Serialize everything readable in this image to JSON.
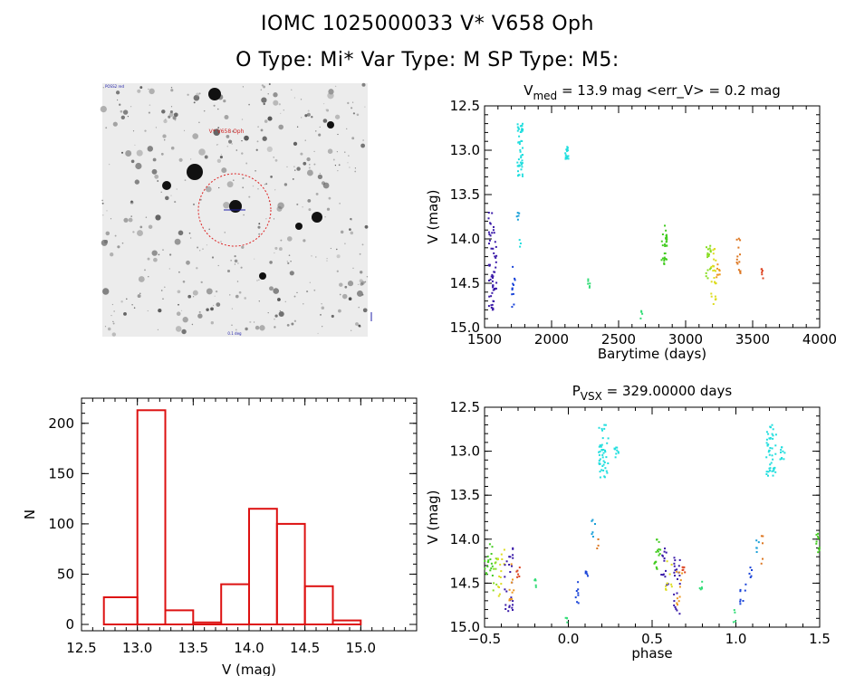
{
  "header": {
    "title_line1": "IOMC 1025000033    V* V658 Oph",
    "title_line2": "O Type: Mi*  Var Type: M  SP Type: M5:"
  },
  "image_panel": {
    "description_label_top_left": "POSS2 red",
    "label_source": "V* V658 Oph",
    "label_bottom": "0.1 deg",
    "colors": {
      "circle": "#dd2222",
      "label": "#cc2222",
      "marker": "#2222aa"
    }
  },
  "chart_data": [
    {
      "id": "lightcurve",
      "type": "scatter",
      "title_main": "V",
      "title_sub": "med",
      "title_rest": " = 13.9 mag <err_V> = 0.2 mag",
      "xlabel": "Barytime (days)",
      "ylabel": "V (mag)",
      "xlim": [
        1500,
        4000
      ],
      "ylim": [
        15.0,
        12.5
      ],
      "y_inverted": true,
      "xticks": [
        "1500",
        "2000",
        "2500",
        "3000",
        "3500",
        "4000"
      ],
      "yticks": [
        "12.5",
        "13.0",
        "13.5",
        "14.0",
        "14.5",
        "15.0"
      ],
      "clusters": [
        {
          "x0": 1530,
          "x1": 1575,
          "y0": 13.7,
          "y1": 14.8,
          "n": 40,
          "color": "#3a1aa8"
        },
        {
          "x0": 1560,
          "x1": 1590,
          "y0": 14.0,
          "y1": 14.6,
          "n": 18,
          "color": "#3a1aa8"
        },
        {
          "x0": 1700,
          "x1": 1730,
          "y0": 14.3,
          "y1": 14.8,
          "n": 12,
          "color": "#1a44d8"
        },
        {
          "x0": 1740,
          "x1": 1760,
          "y0": 13.7,
          "y1": 13.8,
          "n": 5,
          "color": "#1aa0d8"
        },
        {
          "x0": 1745,
          "x1": 1785,
          "y0": 12.7,
          "y1": 13.3,
          "n": 50,
          "color": "#22dede"
        },
        {
          "x0": 1760,
          "x1": 1770,
          "y0": 14.0,
          "y1": 14.1,
          "n": 3,
          "color": "#22dede"
        },
        {
          "x0": 2100,
          "x1": 2130,
          "y0": 12.95,
          "y1": 13.1,
          "n": 16,
          "color": "#22dede"
        },
        {
          "x0": 2270,
          "x1": 2295,
          "y0": 14.4,
          "y1": 14.55,
          "n": 6,
          "color": "#33dd77"
        },
        {
          "x0": 2660,
          "x1": 2680,
          "y0": 14.8,
          "y1": 14.9,
          "n": 4,
          "color": "#33dd77"
        },
        {
          "x0": 2820,
          "x1": 2860,
          "y0": 13.85,
          "y1": 14.3,
          "n": 30,
          "color": "#44cc22"
        },
        {
          "x0": 3150,
          "x1": 3190,
          "y0": 14.05,
          "y1": 14.55,
          "n": 18,
          "color": "#88dd22"
        },
        {
          "x0": 3190,
          "x1": 3230,
          "y0": 14.05,
          "y1": 14.75,
          "n": 26,
          "color": "#dddd22"
        },
        {
          "x0": 3230,
          "x1": 3255,
          "y0": 14.25,
          "y1": 14.45,
          "n": 8,
          "color": "#ee9922"
        },
        {
          "x0": 3380,
          "x1": 3410,
          "y0": 13.95,
          "y1": 14.4,
          "n": 14,
          "color": "#dd7722"
        },
        {
          "x0": 3560,
          "x1": 3580,
          "y0": 14.3,
          "y1": 14.45,
          "n": 6,
          "color": "#dd4422"
        }
      ]
    },
    {
      "id": "histogram",
      "type": "bar",
      "xlabel": "V (mag)",
      "ylabel": "N",
      "xlim": [
        12.5,
        15.5
      ],
      "ylim": [
        0,
        225
      ],
      "xticks": [
        "12.5",
        "13.0",
        "13.5",
        "14.0",
        "14.5",
        "15.0"
      ],
      "yticks": [
        "0",
        "50",
        "100",
        "150",
        "200"
      ],
      "bin_left": [
        12.7,
        13.0,
        13.25,
        13.5,
        13.75,
        14.0,
        14.25,
        14.5,
        14.75,
        15.0
      ],
      "bin_width": 0.25,
      "values": [
        27,
        213,
        14,
        2,
        40,
        115,
        100,
        38,
        4,
        0
      ],
      "color": "#dd1111"
    },
    {
      "id": "phased",
      "type": "scatter",
      "title_main": "P",
      "title_sub": "VSX",
      "title_rest": " = 329.00000 days",
      "xlabel": "phase",
      "ylabel": "V (mag)",
      "xlim": [
        -0.5,
        1.5
      ],
      "ylim": [
        15.0,
        12.5
      ],
      "y_inverted": true,
      "xticks": [
        "−0.5",
        "0.0",
        "0.5",
        "1.0",
        "1.5"
      ],
      "yticks": [
        "12.5",
        "13.0",
        "13.5",
        "14.0",
        "14.5",
        "15.0"
      ],
      "clusters": [
        {
          "x0": -0.5,
          "x1": -0.45,
          "y0": 14.05,
          "y1": 14.45,
          "n": 18,
          "color": "#44cc22"
        },
        {
          "x0": -0.46,
          "x1": -0.42,
          "y0": 14.2,
          "y1": 14.6,
          "n": 10,
          "color": "#88dd22"
        },
        {
          "x0": -0.42,
          "x1": -0.38,
          "y0": 14.05,
          "y1": 14.7,
          "n": 14,
          "color": "#dddd22"
        },
        {
          "x0": -0.38,
          "x1": -0.33,
          "y0": 14.1,
          "y1": 14.85,
          "n": 26,
          "color": "#3a1aa8"
        },
        {
          "x0": -0.36,
          "x1": -0.32,
          "y0": 14.2,
          "y1": 14.7,
          "n": 10,
          "color": "#ee9922"
        },
        {
          "x0": -0.31,
          "x1": -0.29,
          "y0": 14.3,
          "y1": 14.45,
          "n": 6,
          "color": "#dd4422"
        },
        {
          "x0": -0.21,
          "x1": -0.19,
          "y0": 14.45,
          "y1": 14.6,
          "n": 5,
          "color": "#33dd77"
        },
        {
          "x0": -0.02,
          "x1": 0.0,
          "y0": 14.8,
          "y1": 14.95,
          "n": 4,
          "color": "#33dd77"
        },
        {
          "x0": 0.04,
          "x1": 0.07,
          "y0": 14.4,
          "y1": 14.75,
          "n": 8,
          "color": "#1a44d8"
        },
        {
          "x0": 0.1,
          "x1": 0.12,
          "y0": 14.3,
          "y1": 14.45,
          "n": 5,
          "color": "#1a44d8"
        },
        {
          "x0": 0.14,
          "x1": 0.16,
          "y0": 13.75,
          "y1": 14.2,
          "n": 6,
          "color": "#1aa0d8"
        },
        {
          "x0": 0.16,
          "x1": 0.18,
          "y0": 14.0,
          "y1": 14.25,
          "n": 4,
          "color": "#dd7722"
        },
        {
          "x0": 0.18,
          "x1": 0.24,
          "y0": 12.7,
          "y1": 13.3,
          "n": 45,
          "color": "#22dede"
        },
        {
          "x0": 0.27,
          "x1": 0.3,
          "y0": 12.95,
          "y1": 13.1,
          "n": 10,
          "color": "#22dede"
        },
        {
          "x0": 0.5,
          "x1": 0.55,
          "y0": 14.0,
          "y1": 14.35,
          "n": 18,
          "color": "#44cc22"
        },
        {
          "x0": 0.55,
          "x1": 0.6,
          "y0": 14.1,
          "y1": 14.55,
          "n": 14,
          "color": "#3a1aa8"
        },
        {
          "x0": 0.58,
          "x1": 0.62,
          "y0": 14.2,
          "y1": 14.6,
          "n": 10,
          "color": "#dddd22"
        },
        {
          "x0": 0.63,
          "x1": 0.67,
          "y0": 14.2,
          "y1": 14.85,
          "n": 22,
          "color": "#3a1aa8"
        },
        {
          "x0": 0.64,
          "x1": 0.68,
          "y0": 14.3,
          "y1": 14.75,
          "n": 10,
          "color": "#ee9922"
        },
        {
          "x0": 0.68,
          "x1": 0.7,
          "y0": 14.3,
          "y1": 14.45,
          "n": 5,
          "color": "#dd4422"
        },
        {
          "x0": 0.78,
          "x1": 0.8,
          "y0": 14.45,
          "y1": 14.6,
          "n": 5,
          "color": "#33dd77"
        },
        {
          "x0": 0.98,
          "x1": 1.0,
          "y0": 14.8,
          "y1": 14.95,
          "n": 4,
          "color": "#33dd77"
        },
        {
          "x0": 1.02,
          "x1": 1.06,
          "y0": 14.4,
          "y1": 14.75,
          "n": 8,
          "color": "#1a44d8"
        },
        {
          "x0": 1.08,
          "x1": 1.1,
          "y0": 14.3,
          "y1": 14.45,
          "n": 5,
          "color": "#1a44d8"
        },
        {
          "x0": 1.12,
          "x1": 1.14,
          "y0": 13.95,
          "y1": 14.2,
          "n": 5,
          "color": "#1aa0d8"
        },
        {
          "x0": 1.15,
          "x1": 1.17,
          "y0": 13.9,
          "y1": 14.3,
          "n": 5,
          "color": "#dd7722"
        },
        {
          "x0": 1.18,
          "x1": 1.24,
          "y0": 12.7,
          "y1": 13.3,
          "n": 45,
          "color": "#22dede"
        },
        {
          "x0": 1.26,
          "x1": 1.3,
          "y0": 12.95,
          "y1": 13.1,
          "n": 10,
          "color": "#22dede"
        },
        {
          "x0": 1.48,
          "x1": 1.5,
          "y0": 13.85,
          "y1": 14.15,
          "n": 10,
          "color": "#44cc22"
        }
      ]
    }
  ]
}
